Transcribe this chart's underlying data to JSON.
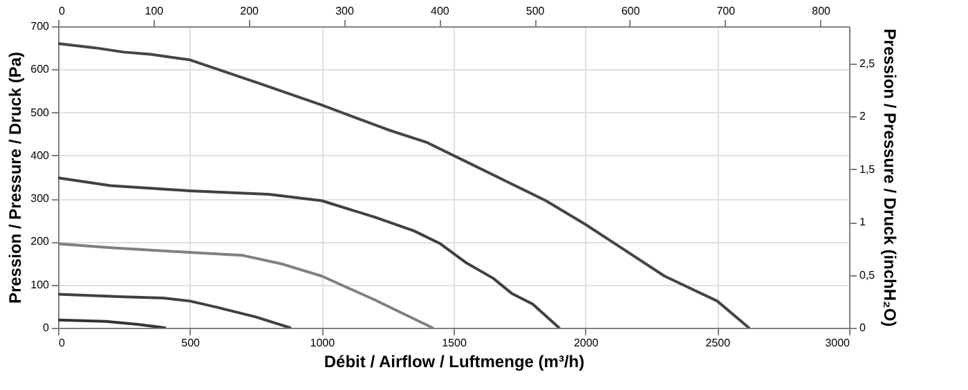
{
  "chart_data": {
    "type": "line",
    "xlabel": "Débit / Airflow / Luftmenge (m³/h)",
    "ylabel": "Pression / Pressure / Druck (Pa)",
    "y2label": "Pression / Pressure / Druck (inchH₂O)",
    "xlim": [
      0,
      3000
    ],
    "xticks": [
      0,
      500,
      1000,
      1500,
      2000,
      2500,
      3000
    ],
    "ylim": [
      0,
      700
    ],
    "yticks": [
      0,
      100,
      200,
      300,
      400,
      500,
      600,
      700
    ],
    "x2lim": [
      0,
      830
    ],
    "x2ticks": [
      0,
      100,
      200,
      300,
      400,
      500,
      600,
      700,
      800
    ],
    "y2lim": [
      0,
      2.85
    ],
    "y2ticks": [
      0,
      {
        "value": 0.5,
        "label": "0,5"
      },
      1,
      {
        "value": 1.5,
        "label": "1,5"
      },
      2,
      {
        "value": 2.5,
        "label": "2,5"
      }
    ],
    "grid": true,
    "legend": false,
    "marker": "none",
    "line_style": "solid",
    "series": [
      {
        "color": "#454545",
        "x": [
          0,
          140,
          250,
          350,
          500,
          750,
          1000,
          1250,
          1400,
          1500,
          1700,
          1850,
          2000,
          2100,
          2300,
          2500,
          2620
        ],
        "values": [
          660,
          650,
          640,
          635,
          622,
          570,
          517,
          460,
          430,
          400,
          340,
          295,
          240,
          200,
          120,
          62,
          0
        ]
      },
      {
        "color": "#404040",
        "x": [
          0,
          200,
          500,
          800,
          1000,
          1200,
          1350,
          1450,
          1550,
          1650,
          1720,
          1800,
          1900
        ],
        "values": [
          348,
          330,
          318,
          310,
          295,
          257,
          225,
          195,
          150,
          115,
          80,
          55,
          0
        ]
      },
      {
        "color": "#808080",
        "x": [
          0,
          200,
          500,
          700,
          850,
          1000,
          1200,
          1420
        ],
        "values": [
          195,
          186,
          175,
          168,
          148,
          120,
          65,
          0
        ]
      },
      {
        "color": "#404040",
        "x": [
          0,
          250,
          400,
          500,
          600,
          750,
          880
        ],
        "values": [
          78,
          72,
          69,
          62,
          48,
          25,
          0
        ]
      },
      {
        "color": "#333333",
        "x": [
          0,
          180,
          300,
          405
        ],
        "values": [
          18,
          15,
          8,
          0
        ]
      }
    ]
  }
}
